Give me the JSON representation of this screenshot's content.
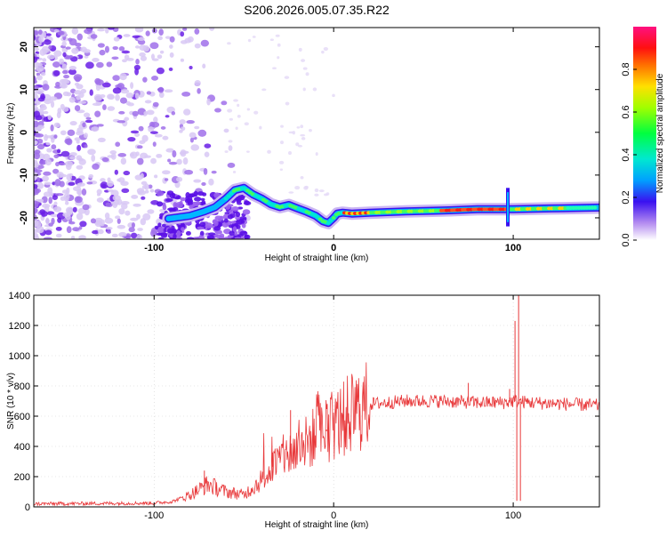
{
  "title": "S206.2026.005.07.35.R22",
  "chart_data": [
    {
      "type": "heatmap",
      "xlabel": "Height of straight line (km)",
      "ylabel": "Frequency (Hz)",
      "xlim": [
        -167,
        148
      ],
      "ylim": [
        -25,
        24.5
      ],
      "xticks": [
        -100,
        0,
        100
      ],
      "yticks": [
        -20,
        -10,
        0,
        10,
        20
      ],
      "ridge": [
        [
          -92,
          -20.2
        ],
        [
          -80,
          -19.5
        ],
        [
          -72,
          -18.5
        ],
        [
          -66,
          -17.5
        ],
        [
          -60,
          -15.5
        ],
        [
          -55,
          -13.5
        ],
        [
          -50,
          -13.0
        ],
        [
          -45,
          -14.5
        ],
        [
          -40,
          -15.5
        ],
        [
          -35,
          -16.8
        ],
        [
          -30,
          -17.5
        ],
        [
          -25,
          -17.0
        ],
        [
          -20,
          -17.8
        ],
        [
          -15,
          -18.6
        ],
        [
          -10,
          -19.5
        ],
        [
          -6,
          -20.8
        ],
        [
          -3,
          -21.2
        ],
        [
          0,
          -20.0
        ],
        [
          2,
          -19.0
        ],
        [
          5,
          -18.8
        ],
        [
          10,
          -19.0
        ],
        [
          20,
          -18.8
        ],
        [
          40,
          -18.5
        ],
        [
          60,
          -18.3
        ],
        [
          80,
          -18.0
        ],
        [
          100,
          -18.0
        ],
        [
          120,
          -17.8
        ],
        [
          148,
          -17.6
        ]
      ],
      "colorbar": {
        "label": "Normalized spectral amplitude",
        "range": [
          0,
          1
        ],
        "ticks": [
          0.0,
          0.2,
          0.4,
          0.6,
          0.8
        ]
      }
    },
    {
      "type": "line",
      "xlabel": "Height of straight line (km)",
      "ylabel": "SNR (10 * v/v)",
      "xlim": [
        -167,
        148
      ],
      "ylim": [
        0,
        1400
      ],
      "xticks": [
        -100,
        0,
        100
      ],
      "yticks": [
        0,
        200,
        400,
        600,
        800,
        1000,
        1200,
        1400
      ],
      "series_color": "#e8383a",
      "envelope": [
        [
          -167,
          20
        ],
        [
          -100,
          25
        ],
        [
          -90,
          35
        ],
        [
          -80,
          80
        ],
        [
          -70,
          150
        ],
        [
          -60,
          100
        ],
        [
          -50,
          80
        ],
        [
          -40,
          180
        ],
        [
          -30,
          320
        ],
        [
          -20,
          380
        ],
        [
          -10,
          470
        ],
        [
          0,
          540
        ],
        [
          10,
          620
        ],
        [
          20,
          680
        ],
        [
          40,
          700
        ],
        [
          60,
          700
        ],
        [
          80,
          690
        ],
        [
          95,
          690
        ],
        [
          100,
          700
        ],
        [
          110,
          690
        ],
        [
          130,
          680
        ],
        [
          148,
          670
        ]
      ],
      "spikes": [
        [
          -72,
          240
        ],
        [
          -34,
          360
        ],
        [
          -24,
          640
        ],
        [
          -4,
          500
        ],
        [
          75,
          820
        ],
        [
          98,
          780
        ],
        [
          101,
          1230
        ],
        [
          102,
          40
        ],
        [
          103,
          1400
        ],
        [
          104,
          40
        ]
      ]
    }
  ]
}
